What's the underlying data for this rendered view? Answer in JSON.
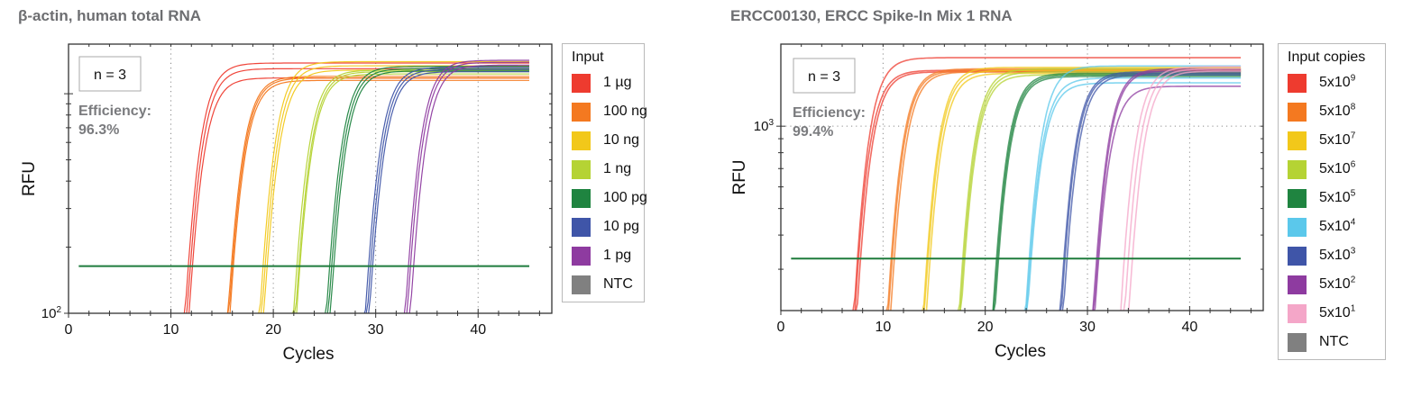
{
  "chart_data": [
    {
      "type": "line",
      "title": "β-actin, human total RNA",
      "xlabel": "Cycles",
      "ylabel": "RFU",
      "yscale": "log",
      "xlim": [
        0,
        47.2
      ],
      "ylim_log10": [
        2,
        3.226
      ],
      "xticks": [
        0,
        10,
        20,
        30,
        40
      ],
      "yticks": [
        {
          "value": 100,
          "label": "10",
          "exp": "2"
        }
      ],
      "grid": "dotted vertical at major x ticks",
      "annotation_box": "n = 3",
      "efficiency_label": "Efficiency:",
      "efficiency_value": "96.3%",
      "threshold_rfu": 164,
      "threshold_color": "#1e7b3c",
      "cycle_range": [
        1,
        45
      ],
      "legend_title": "Input",
      "legend_placement": "right",
      "series": [
        {
          "name": "1 µg",
          "color": "#ee3b2f",
          "cq": [
            11.7,
            11.9,
            12.1
          ],
          "plateau": [
            1380,
            1300,
            1180
          ]
        },
        {
          "name": "100 ng",
          "color": "#f47920",
          "cq": [
            15.9,
            16.0,
            16.1
          ],
          "plateau": [
            1200,
            1180,
            1150
          ]
        },
        {
          "name": "10 ng",
          "color": "#f2c81a",
          "cq": [
            19.0,
            19.2,
            19.4
          ],
          "plateau": [
            1400,
            1340,
            1280
          ]
        },
        {
          "name": "1 ng",
          "color": "#b5d334",
          "cq": [
            22.3,
            22.5,
            22.6
          ],
          "plateau": [
            1280,
            1260,
            1230
          ]
        },
        {
          "name": "100 pg",
          "color": "#1f8440",
          "cq": [
            25.5,
            25.7,
            25.9
          ],
          "plateau": [
            1330,
            1300,
            1270
          ]
        },
        {
          "name": "10 pg",
          "color": "#3f55a8",
          "cq": [
            29.3,
            29.5,
            29.7
          ],
          "plateau": [
            1320,
            1290,
            1260
          ]
        },
        {
          "name": "1 pg",
          "color": "#8e3ba0",
          "cq": [
            33.2,
            33.4,
            33.7
          ],
          "plateau": [
            1420,
            1390,
            1350
          ]
        },
        {
          "name": "NTC",
          "color": "#808080",
          "cq": [],
          "plateau": []
        }
      ]
    },
    {
      "type": "line",
      "title": "ERCC00130, ERCC Spike-In Mix 1 RNA",
      "xlabel": "Cycles",
      "ylabel": "RFU",
      "yscale": "log",
      "xlim": [
        0,
        47.2
      ],
      "ylim_log10": [
        2.326,
        3.3
      ],
      "xticks": [
        0,
        10,
        20,
        30,
        40
      ],
      "yticks": [
        {
          "value": 1000,
          "label": "10",
          "exp": "3"
        }
      ],
      "grid": "dotted vertical at major x ticks, dotted horizontal at 10^3",
      "annotation_box": "n = 3",
      "efficiency_label": "Efficiency:",
      "efficiency_value": "99.4%",
      "threshold_rfu": 328,
      "threshold_color": "#1e7b3c",
      "cycle_range": [
        1,
        45
      ],
      "legend_title": "Input copies",
      "legend_placement": "right",
      "series": [
        {
          "name": "5x10",
          "exp": "9",
          "color": "#ee3b2f",
          "cq": [
            7.5,
            7.6,
            7.8
          ],
          "plateau": [
            1780,
            1600,
            1580
          ]
        },
        {
          "name": "5x10",
          "exp": "8",
          "color": "#f47920",
          "cq": [
            10.8,
            10.9,
            11.1
          ],
          "plateau": [
            1620,
            1600,
            1580
          ]
        },
        {
          "name": "5x10",
          "exp": "7",
          "color": "#f2c81a",
          "cq": [
            14.3,
            14.4,
            14.6
          ],
          "plateau": [
            1640,
            1600,
            1560
          ]
        },
        {
          "name": "5x10",
          "exp": "6",
          "color": "#b5d334",
          "cq": [
            17.8,
            17.9,
            18.0
          ],
          "plateau": [
            1620,
            1580,
            1540
          ]
        },
        {
          "name": "5x10",
          "exp": "5",
          "color": "#1f8440",
          "cq": [
            21.1,
            21.2,
            21.3
          ],
          "plateau": [
            1560,
            1540,
            1520
          ]
        },
        {
          "name": "5x10",
          "exp": "4",
          "color": "#5bc8eb",
          "cq": [
            24.3,
            24.4,
            24.5
          ],
          "plateau": [
            1660,
            1500,
            1440
          ]
        },
        {
          "name": "5x10",
          "exp": "3",
          "color": "#3f55a8",
          "cq": [
            27.7,
            27.8,
            28.0
          ],
          "plateau": [
            1580,
            1560,
            1540
          ]
        },
        {
          "name": "5x10",
          "exp": "2",
          "color": "#8e3ba0",
          "cq": [
            30.9,
            31.0,
            31.1
          ],
          "plateau": [
            1620,
            1600,
            1400
          ]
        },
        {
          "name": "5x10",
          "exp": "1",
          "color": "#f4a6c8",
          "cq": [
            33.6,
            34.0,
            34.4
          ],
          "plateau": [
            1650,
            1620,
            1590
          ]
        },
        {
          "name": "NTC",
          "exp": "",
          "color": "#808080",
          "cq": [],
          "plateau": []
        }
      ]
    }
  ]
}
